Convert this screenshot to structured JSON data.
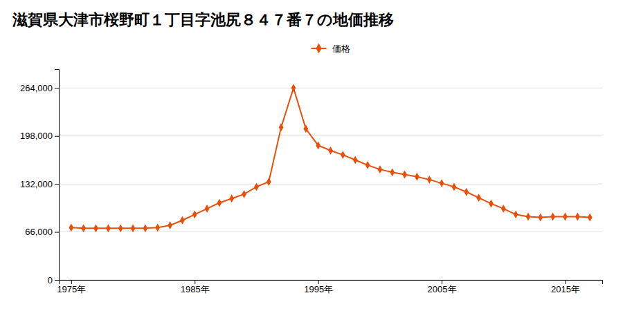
{
  "chart_data": {
    "type": "line",
    "title": "滋賀県大津市桜野町１丁目字池尻８４７番７の地価推移",
    "x": [
      1975,
      1976,
      1977,
      1978,
      1979,
      1980,
      1981,
      1982,
      1983,
      1984,
      1985,
      1986,
      1987,
      1988,
      1989,
      1990,
      1991,
      1992,
      1993,
      1994,
      1995,
      1996,
      1997,
      1998,
      1999,
      2000,
      2001,
      2002,
      2003,
      2004,
      2005,
      2006,
      2007,
      2008,
      2009,
      2010,
      2011,
      2012,
      2013,
      2014,
      2015,
      2016,
      2017
    ],
    "series": [
      {
        "name": "価格",
        "color": "#E8500A",
        "marker": "diamond",
        "line_style": "solid",
        "values": [
          72000,
          71000,
          71000,
          71000,
          71000,
          71000,
          71000,
          72000,
          75000,
          82000,
          90000,
          98000,
          106000,
          112000,
          118000,
          128000,
          135000,
          210000,
          264000,
          208000,
          185000,
          178000,
          172000,
          165000,
          158000,
          152000,
          148000,
          145000,
          142000,
          138000,
          133000,
          128000,
          121000,
          113000,
          105000,
          98000,
          90000,
          87000,
          86000,
          87000,
          87000,
          87000,
          86000
        ]
      }
    ],
    "xlim": [
      1974,
      2018
    ],
    "xticks": [
      {
        "value": 1975,
        "label": "1975年"
      },
      {
        "value": 1985,
        "label": "1985年"
      },
      {
        "value": 1995,
        "label": "1995年"
      },
      {
        "value": 2005,
        "label": "2005年"
      },
      {
        "value": 2015,
        "label": "2015年"
      }
    ],
    "ylim": [
      0,
      290000
    ],
    "yticks": [
      0,
      {
        "value": 66000,
        "label": "66,000"
      },
      {
        "value": 132000,
        "label": "132,000"
      },
      {
        "value": 198000,
        "label": "198,000"
      },
      {
        "value": 264000,
        "label": "264,000"
      }
    ],
    "grid": true,
    "legend": "top"
  }
}
